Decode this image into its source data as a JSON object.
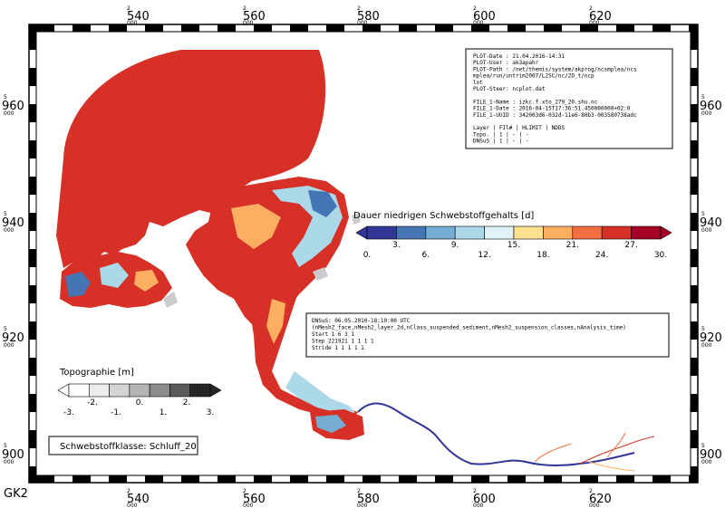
{
  "map": {
    "grid_label": "GK2",
    "easting_ticks": [
      {
        "top": "2",
        "main": "540",
        "sub": "000"
      },
      {
        "top": "2",
        "main": "560",
        "sub": "000"
      },
      {
        "top": "2",
        "main": "580",
        "sub": "000"
      },
      {
        "top": "2",
        "main": "600",
        "sub": "000"
      },
      {
        "top": "2",
        "main": "620",
        "sub": "000"
      }
    ],
    "northing_ticks": [
      {
        "top": "5",
        "main": "960",
        "sub": "000"
      },
      {
        "top": "5",
        "main": "940",
        "sub": "000"
      },
      {
        "top": "5",
        "main": "920",
        "sub": "000"
      },
      {
        "top": "5",
        "main": "900",
        "sub": "000"
      }
    ],
    "colors": {
      "main_red": "#d73027",
      "dark_red": "#a50026",
      "orange": "#f46d43",
      "light_orange": "#fdae61",
      "light_yellow": "#fee090",
      "light_blue": "#e0f3f8",
      "sky_blue": "#abd9e9",
      "blue": "#74add1",
      "mid_blue": "#4575b4",
      "navy": "#313695",
      "grey": "#cccccc"
    }
  },
  "info_box": {
    "lines": [
      "PLOT-Date : 21.04.2016-14:31",
      "PLOT-User : ak3apahr",
      "PLOT-Path : /net/themis/system/akprog/ncsmplea/ncs",
      "            mplea/run/untrim2007/L2SC/nc/2D_t/ncp",
      "            lot",
      "PLOT-Steer: ncplot.dat",
      "",
      "FILE_1-Name : izkc.f.xto_279_20.shu.nc",
      "FILE_1-Date : 2016-04-15T17:36:51.450000000+02:0",
      "FILE_1-UUID : 342003d6-032d-11e6-80b3-003580738adc",
      "",
      "Layer  | FIl#  | HLIMIT  | NDDS",
      "Topo.  |   1   |   -     |  -",
      "DNSuS  |   1   |   -     |  -"
    ]
  },
  "data_box": {
    "lines": [
      "DNSuS: 06.05.2010-18:10:00 UTC",
      " (nMesh2_face,nMesh2_layer_2d,nClass_suspended_sediment,nMesh2_suspension_classes,nAnalysis_time)",
      "Start       1       6       3       1",
      "Step   221921       1       1       1       1",
      "Stride      1       1       1       1       1"
    ]
  },
  "legend_duration": {
    "title": "Dauer niedrigen Schwebstoffgehalts [d]",
    "top_labels": [
      "3.",
      "9.",
      "15.",
      "21.",
      "27."
    ],
    "bottom_labels": [
      "0.",
      "6.",
      "12.",
      "18.",
      "24.",
      "30."
    ],
    "colors": [
      "#313695",
      "#4575b4",
      "#74add1",
      "#abd9e9",
      "#e0f3f8",
      "#fee090",
      "#fdae61",
      "#f46d43",
      "#d73027",
      "#a50026"
    ],
    "range": [
      0,
      30
    ]
  },
  "legend_topo": {
    "title": "Topographie [m]",
    "top_labels": [
      "-2.",
      "0.",
      "2."
    ],
    "bottom_labels": [
      "-3.",
      "-1.",
      "1.",
      "3."
    ],
    "colors": [
      "#ffffff",
      "#ececec",
      "#d4d4d4",
      "#b4b4b4",
      "#8c8c8c",
      "#5a5a5a",
      "#262626"
    ],
    "range": [
      -3,
      3
    ]
  },
  "class_box": {
    "label": "Schwebstoffklasse: Schluff_20"
  }
}
